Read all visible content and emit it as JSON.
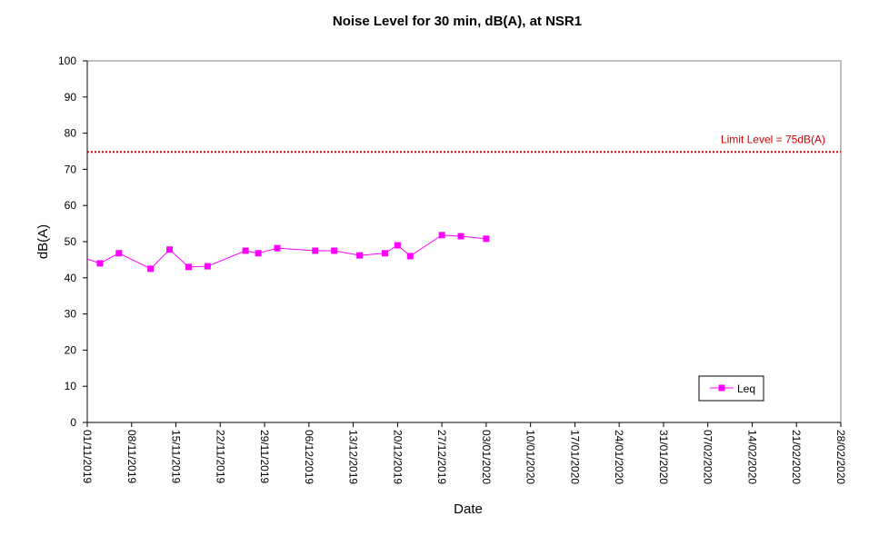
{
  "chart_data": {
    "type": "line",
    "title": "Noise Level for 30 min, dB(A), at NSR1",
    "xlabel": "Date",
    "ylabel": "dB(A)",
    "ylim": [
      0,
      100
    ],
    "yticks": [
      0,
      10,
      20,
      30,
      40,
      50,
      60,
      70,
      80,
      90,
      100
    ],
    "xlim": [
      "2019-11-01",
      "2020-02-28"
    ],
    "xtick_labels": [
      "01/11/2019",
      "08/11/2019",
      "15/11/2019",
      "22/11/2019",
      "29/11/2019",
      "06/12/2019",
      "13/12/2019",
      "20/12/2019",
      "27/12/2019",
      "03/01/2020",
      "10/01/2020",
      "17/01/2020",
      "24/01/2020",
      "31/01/2020",
      "07/02/2020",
      "14/02/2020",
      "21/02/2020",
      "28/02/2020"
    ],
    "grid": false,
    "legend": "bottom-right",
    "series": [
      {
        "name": "Leq",
        "color": "#ff00ff",
        "marker": "square",
        "points": [
          {
            "x": "2019-11-01",
            "y": 45.2,
            "marker": false
          },
          {
            "x": "2019-11-03",
            "y": 44.0
          },
          {
            "x": "2019-11-06",
            "y": 46.8
          },
          {
            "x": "2019-11-11",
            "y": 42.5
          },
          {
            "x": "2019-11-14",
            "y": 47.8
          },
          {
            "x": "2019-11-17",
            "y": 43.0
          },
          {
            "x": "2019-11-20",
            "y": 43.2
          },
          {
            "x": "2019-11-26",
            "y": 47.5
          },
          {
            "x": "2019-11-28",
            "y": 46.8
          },
          {
            "x": "2019-12-01",
            "y": 48.2
          },
          {
            "x": "2019-12-07",
            "y": 47.5
          },
          {
            "x": "2019-12-10",
            "y": 47.5
          },
          {
            "x": "2019-12-14",
            "y": 46.2
          },
          {
            "x": "2019-12-18",
            "y": 46.8
          },
          {
            "x": "2019-12-20",
            "y": 49.0
          },
          {
            "x": "2019-12-22",
            "y": 46.0
          },
          {
            "x": "2019-12-27",
            "y": 51.8
          },
          {
            "x": "2019-12-30",
            "y": 51.5
          },
          {
            "x": "2020-01-03",
            "y": 50.8
          }
        ]
      }
    ],
    "limit_line": {
      "value": 74.8,
      "label": "Limit Level  = 75dB(A)",
      "color": "#cc0000",
      "style": "dotted"
    }
  }
}
